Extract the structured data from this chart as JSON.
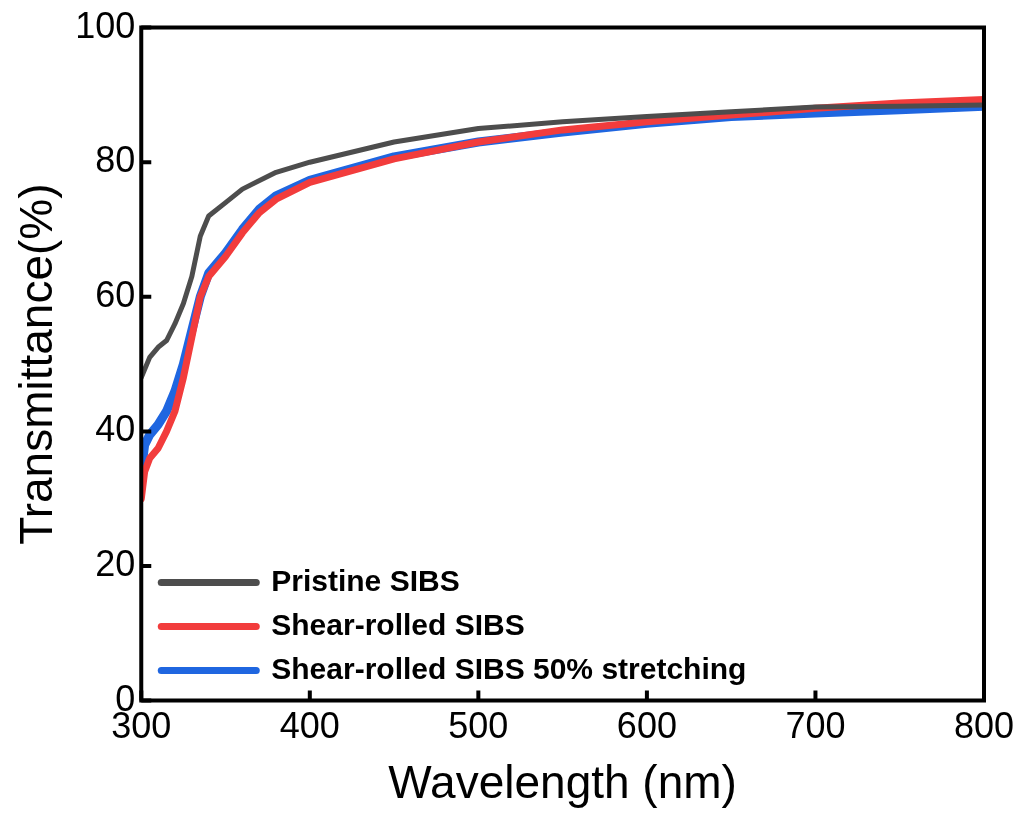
{
  "chart_data": {
    "type": "line",
    "xlabel": "Wavelength (nm)",
    "ylabel": "Transmittance(%)",
    "xlim": [
      300,
      800
    ],
    "xticks": [
      300,
      400,
      500,
      600,
      700,
      800
    ],
    "ylim": [
      0,
      100
    ],
    "yticks": [
      0,
      20,
      40,
      60,
      80,
      100
    ],
    "grid": false,
    "legend": "bottom left",
    "marker": "none",
    "line_style": "solid",
    "series": [
      {
        "name": "Pristine SIBS",
        "color": "#4d4d4d",
        "x": [
          300,
          305,
          310,
          315,
          320,
          325,
          330,
          335,
          340,
          350,
          360,
          380,
          400,
          450,
          500,
          550,
          600,
          650,
          700,
          750,
          800
        ],
        "values": [
          48,
          51,
          52.5,
          53.5,
          56,
          59,
          63,
          69,
          72,
          74,
          76,
          78.5,
          80,
          83,
          85,
          86,
          86.8,
          87.5,
          88.2,
          88.3,
          88.5
        ]
      },
      {
        "name": "Shear-rolled SIBS",
        "color": "#f23c3c",
        "x": [
          300,
          302,
          305,
          310,
          315,
          320,
          325,
          330,
          335,
          340,
          350,
          360,
          370,
          380,
          400,
          450,
          500,
          550,
          600,
          650,
          700,
          750,
          800
        ],
        "values": [
          30,
          34,
          36,
          37.5,
          40,
          43,
          48,
          54,
          60,
          63,
          66,
          69.5,
          72.5,
          74.5,
          77,
          80.5,
          83,
          84.8,
          86,
          87,
          88,
          88.8,
          89.3
        ]
      },
      {
        "name": "Shear-rolled SIBS 50% stretching",
        "color": "#1f66e0",
        "x": [
          300,
          302,
          305,
          310,
          315,
          320,
          325,
          330,
          335,
          340,
          350,
          360,
          370,
          380,
          400,
          450,
          500,
          550,
          600,
          650,
          700,
          750,
          800
        ],
        "values": [
          34,
          38,
          39.5,
          41,
          43,
          46,
          50,
          55,
          60,
          63.5,
          66.5,
          70,
          73,
          75,
          77.3,
          80.8,
          83,
          84.5,
          85.8,
          86.8,
          87.3,
          87.8,
          88.3
        ]
      }
    ]
  }
}
